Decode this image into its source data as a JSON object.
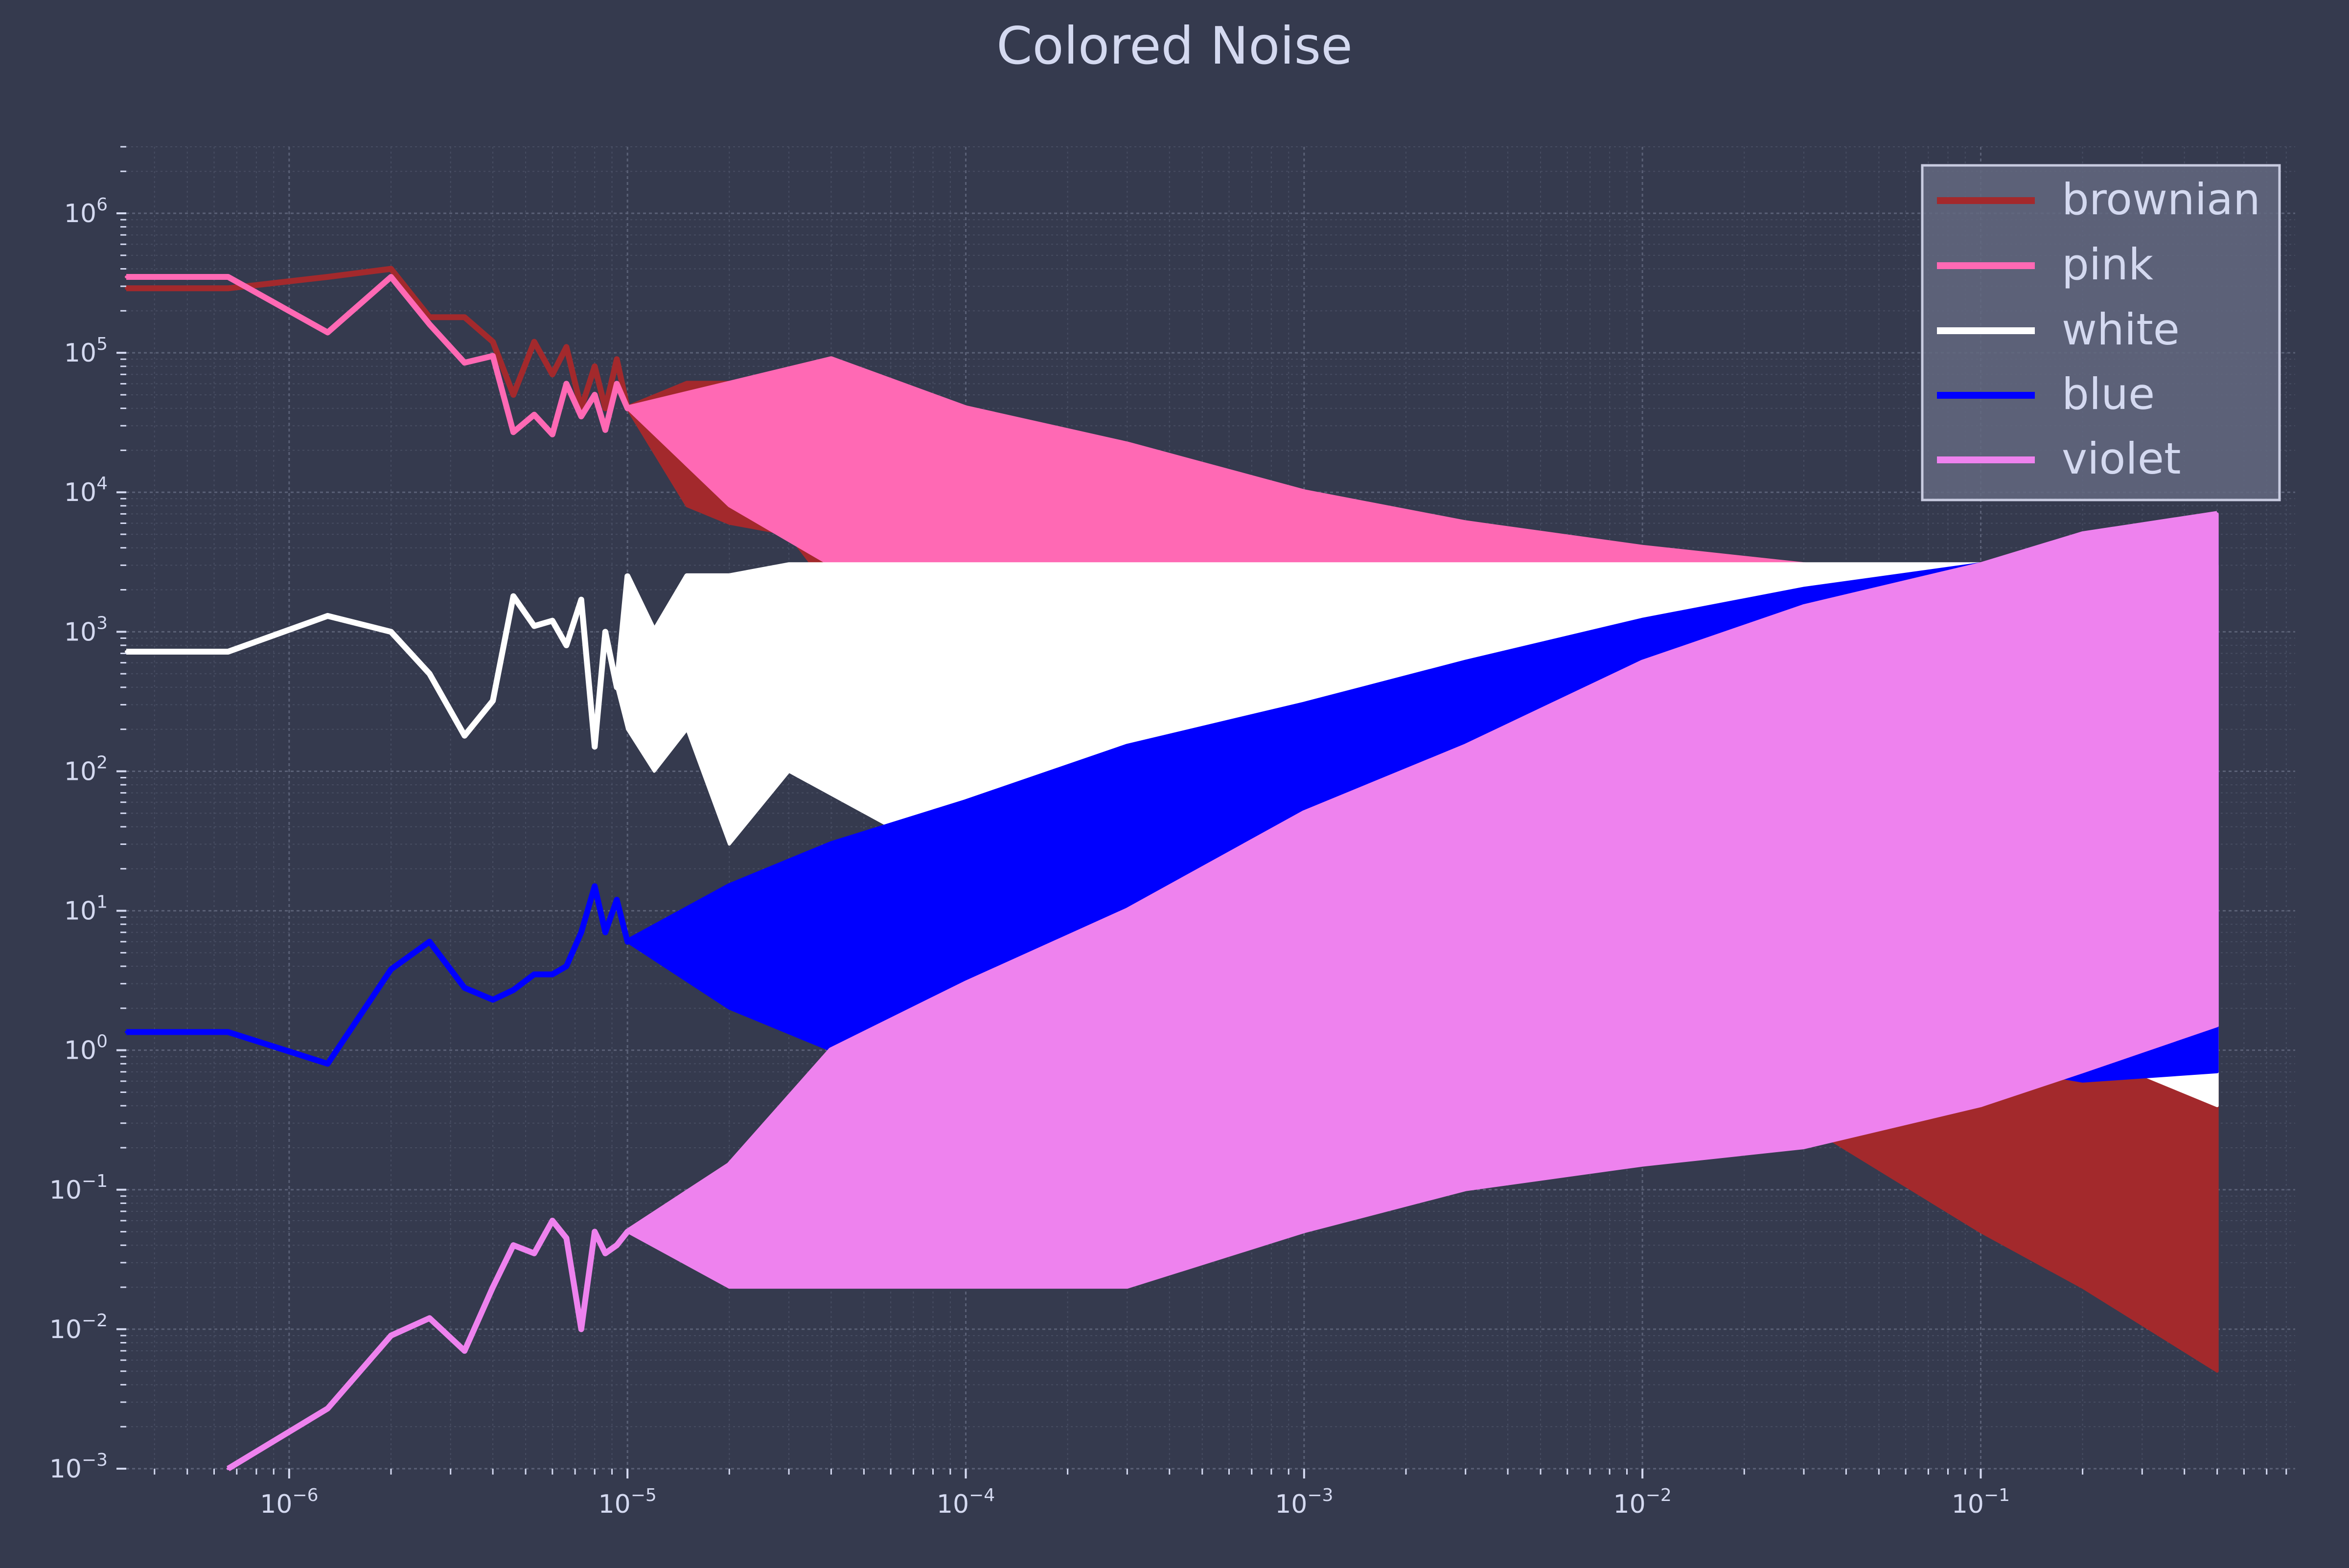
{
  "colors": {
    "background": "#353a4e",
    "text": "#d4d9f0",
    "grid": "#5a6076",
    "legend_bg": "#636880",
    "legend_border": "#c8cbe0"
  },
  "chart_data": {
    "type": "line",
    "title": "Colored Noise",
    "xlabel": "",
    "ylabel": "",
    "xscale": "log",
    "yscale": "log",
    "xlim": [
      3.3e-07,
      0.85
    ],
    "ylim": [
      0.001,
      3000000
    ],
    "grid": "on (major and minor, dotted)",
    "legend_position": "top-right",
    "x_ticks": [
      {
        "value": 1e-06,
        "base": "10",
        "exp": "−6"
      },
      {
        "value": 1e-05,
        "base": "10",
        "exp": "−5"
      },
      {
        "value": 0.0001,
        "base": "10",
        "exp": "−4"
      },
      {
        "value": 0.001,
        "base": "10",
        "exp": "−3"
      },
      {
        "value": 0.01,
        "base": "10",
        "exp": "−2"
      },
      {
        "value": 0.1,
        "base": "10",
        "exp": "−1"
      }
    ],
    "y_ticks": [
      {
        "value": 0.001,
        "base": "10",
        "exp": "−3"
      },
      {
        "value": 0.01,
        "base": "10",
        "exp": "−2"
      },
      {
        "value": 0.1,
        "base": "10",
        "exp": "−1"
      },
      {
        "value": 1,
        "base": "10",
        "exp": "0"
      },
      {
        "value": 10,
        "base": "10",
        "exp": "1"
      },
      {
        "value": 100,
        "base": "10",
        "exp": "2"
      },
      {
        "value": 1000,
        "base": "10",
        "exp": "3"
      },
      {
        "value": 10000,
        "base": "10",
        "exp": "4"
      },
      {
        "value": 100000,
        "base": "10",
        "exp": "5"
      },
      {
        "value": 1000000,
        "base": "10",
        "exp": "6"
      }
    ],
    "series": [
      {
        "name": "brownian",
        "color": "#a3292c",
        "spectral_slope": -2,
        "x": [
          3.3e-07,
          6.6e-07,
          1.3e-06,
          2e-06,
          2.6e-06,
          3.3e-06,
          4e-06,
          4.6e-06,
          5.3e-06,
          6e-06,
          6.6e-06,
          7.3e-06,
          8e-06,
          8.6e-06,
          9.3e-06,
          1e-05,
          1.5e-05,
          2e-05,
          3e-05,
          4e-05,
          6e-05,
          0.0001,
          0.0002,
          0.0004,
          0.001,
          0.003,
          0.01,
          0.03,
          0.1,
          0.2,
          0.5
        ],
        "y_upper": [
          290000,
          290000,
          350000,
          400000,
          180000,
          180000,
          120000,
          50000,
          120000,
          70000,
          110000,
          40000,
          80000,
          40000,
          90000,
          40000,
          60000,
          60000,
          40000,
          35000,
          30000,
          25000,
          9000,
          3000,
          800,
          300,
          80,
          40,
          20,
          12,
          8
        ],
        "y_lower": [
          290000,
          290000,
          350000,
          400000,
          180000,
          180000,
          120000,
          50000,
          120000,
          70000,
          110000,
          40000,
          80000,
          40000,
          90000,
          40000,
          8000,
          6000,
          5000,
          2000,
          1000,
          300,
          100,
          40,
          15,
          5,
          1,
          0.3,
          0.05,
          0.02,
          0.005
        ]
      },
      {
        "name": "pink",
        "color": "#ff69b4",
        "spectral_slope": -1,
        "x": [
          3.3e-07,
          6.6e-07,
          1.3e-06,
          2e-06,
          2.6e-06,
          3.3e-06,
          4e-06,
          4.6e-06,
          5.3e-06,
          6e-06,
          6.6e-06,
          7.3e-06,
          8e-06,
          8.6e-06,
          9.3e-06,
          1e-05,
          2e-05,
          4e-05,
          0.0001,
          0.0003,
          0.001,
          0.003,
          0.01,
          0.03,
          0.1,
          0.2,
          0.5
        ],
        "y_upper": [
          350000,
          350000,
          140000,
          350000,
          160000,
          85000,
          95000,
          27000,
          36000,
          26000,
          60000,
          35000,
          50000,
          28000,
          60000,
          40000,
          60000,
          90000,
          40000,
          22000,
          10000,
          6000,
          4000,
          3000,
          2500,
          2500,
          2500
        ],
        "y_lower": [
          350000,
          350000,
          140000,
          350000,
          160000,
          85000,
          95000,
          27000,
          36000,
          26000,
          60000,
          35000,
          50000,
          28000,
          60000,
          40000,
          8000,
          3000,
          1500,
          700,
          300,
          100,
          50,
          20,
          5,
          2,
          1
        ]
      },
      {
        "name": "white",
        "color": "#ffffff",
        "spectral_slope": 0,
        "x": [
          3.3e-07,
          6.6e-07,
          1.3e-06,
          2e-06,
          2.6e-06,
          3.3e-06,
          4e-06,
          4.6e-06,
          5.3e-06,
          6e-06,
          6.6e-06,
          7.3e-06,
          8e-06,
          8.6e-06,
          9.3e-06,
          1e-05,
          1.2e-05,
          1.5e-05,
          2e-05,
          3e-05,
          6e-05,
          0.0001,
          0.0003,
          0.001,
          0.01,
          0.1,
          0.5
        ],
        "y_upper": [
          720,
          720,
          1300,
          1000,
          500,
          180,
          320,
          1800,
          1100,
          1200,
          800,
          1700,
          150,
          1000,
          400,
          2500,
          1000,
          2500,
          2500,
          3000,
          3000,
          3000,
          3000,
          3000,
          3000,
          3000,
          3000
        ],
        "y_lower": [
          720,
          720,
          1300,
          1000,
          500,
          180,
          320,
          1800,
          1100,
          1200,
          800,
          1700,
          150,
          1000,
          400,
          200,
          100,
          200,
          30,
          100,
          40,
          30,
          20,
          10,
          5,
          2,
          0.4
        ]
      },
      {
        "name": "blue",
        "color": "#0000ff",
        "spectral_slope": 1,
        "x": [
          3.3e-07,
          6.6e-07,
          1.3e-06,
          2e-06,
          2.6e-06,
          3.3e-06,
          4e-06,
          4.6e-06,
          5.3e-06,
          6e-06,
          6.6e-06,
          7.3e-06,
          8e-06,
          8.6e-06,
          9.3e-06,
          1e-05,
          2e-05,
          4e-05,
          0.0001,
          0.0003,
          0.001,
          0.003,
          0.01,
          0.03,
          0.1,
          0.2,
          0.5
        ],
        "y_upper": [
          1.35,
          1.35,
          0.8,
          3.8,
          6,
          2.8,
          2.3,
          2.7,
          3.5,
          3.5,
          4,
          7,
          15,
          7,
          12,
          6,
          15,
          30,
          60,
          150,
          300,
          600,
          1200,
          2000,
          3000,
          4000,
          5000
        ],
        "y_lower": [
          1.35,
          1.35,
          0.8,
          3.8,
          6,
          2.8,
          2.3,
          2.7,
          3.5,
          3.5,
          4,
          7,
          15,
          7,
          12,
          6,
          2,
          1,
          1,
          1,
          1,
          1,
          1,
          1,
          0.8,
          0.6,
          0.7
        ]
      },
      {
        "name": "violet",
        "color": "#ee82ee",
        "spectral_slope": 2,
        "x": [
          6.6e-07,
          1.3e-06,
          2e-06,
          2.6e-06,
          3.3e-06,
          4e-06,
          4.6e-06,
          5.3e-06,
          6e-06,
          6.6e-06,
          7.3e-06,
          8e-06,
          8.6e-06,
          9.3e-06,
          1e-05,
          2e-05,
          4e-05,
          0.0001,
          0.0003,
          0.001,
          0.003,
          0.01,
          0.03,
          0.1,
          0.2,
          0.5
        ],
        "y_upper": [
          0.001,
          0.0027,
          0.009,
          0.012,
          0.007,
          0.02,
          0.04,
          0.035,
          0.06,
          0.045,
          0.01,
          0.05,
          0.035,
          0.04,
          0.05,
          0.15,
          1,
          3,
          10,
          50,
          150,
          600,
          1500,
          3000,
          5000,
          7000
        ],
        "y_lower": [
          0.001,
          0.0027,
          0.009,
          0.012,
          0.007,
          0.02,
          0.04,
          0.035,
          0.06,
          0.045,
          0.01,
          0.05,
          0.035,
          0.04,
          0.05,
          0.02,
          0.02,
          0.02,
          0.02,
          0.05,
          0.1,
          0.15,
          0.2,
          0.4,
          0.7,
          1.5
        ]
      }
    ]
  }
}
